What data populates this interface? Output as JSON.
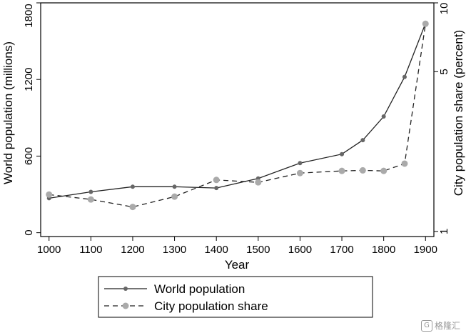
{
  "chart_data": {
    "type": "line",
    "title": "",
    "xlabel": "Year",
    "ylabel_left": "World population (millions)",
    "ylabel_right": "City population share (percent)",
    "x": [
      1000,
      1100,
      1200,
      1300,
      1400,
      1500,
      1600,
      1700,
      1750,
      1800,
      1850,
      1900
    ],
    "x_ticks": [
      1000,
      1100,
      1200,
      1300,
      1400,
      1500,
      1600,
      1700,
      1800,
      1900
    ],
    "xlim": [
      980,
      1920
    ],
    "y_left_ticks": [
      0,
      600,
      1200,
      1800
    ],
    "y_left_lim": [
      -30,
      1800
    ],
    "y_right_scale": "log",
    "y_right_ticks": [
      1,
      5,
      10
    ],
    "y_right_lim": [
      0.95,
      10
    ],
    "grid": false,
    "legend_position": "below",
    "series": [
      {
        "name": "World population",
        "axis": "left",
        "style": "solid",
        "marker": "small-dot",
        "color": "#222222",
        "marker_color": "#666666",
        "values": [
          270,
          320,
          360,
          360,
          350,
          425,
          545,
          615,
          725,
          910,
          1220,
          1640
        ]
      },
      {
        "name": "City population share",
        "axis": "right",
        "style": "dashed",
        "marker": "large-dot",
        "color": "#222222",
        "marker_color": "#aaaaaa",
        "values": [
          1.45,
          1.38,
          1.28,
          1.42,
          1.68,
          1.64,
          1.8,
          1.84,
          1.85,
          1.84,
          1.98,
          8.1
        ]
      }
    ]
  },
  "watermark": {
    "logo": "G",
    "text": "格隆汇"
  }
}
